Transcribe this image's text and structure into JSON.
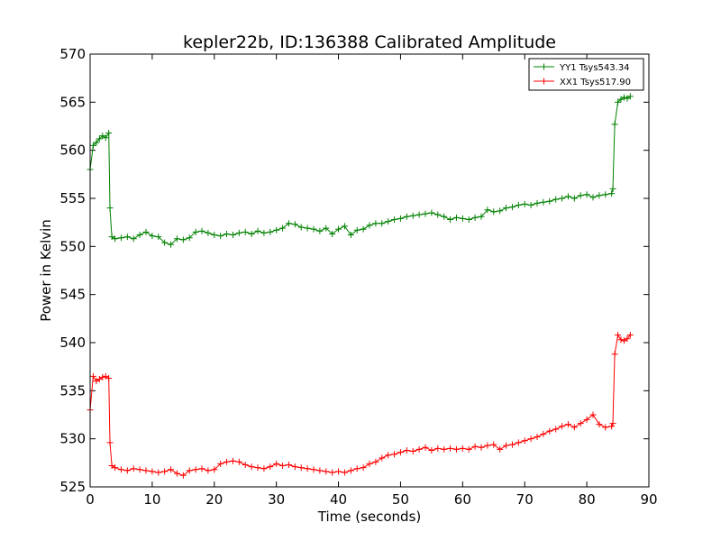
{
  "chart_data": {
    "type": "line",
    "title": "kepler22b, ID:136388 Calibrated Amplitude",
    "xlabel": "Time (seconds)",
    "ylabel": "Power in Kelvin",
    "xlim": [
      0,
      90
    ],
    "ylim": [
      525,
      570
    ],
    "x_ticks": [
      "0",
      "10",
      "20",
      "30",
      "40",
      "50",
      "60",
      "70",
      "80",
      "90"
    ],
    "y_ticks": [
      "525",
      "530",
      "535",
      "540",
      "545",
      "550",
      "555",
      "560",
      "565",
      "570"
    ],
    "grid": false,
    "legend_position": "top-right",
    "marker": "+",
    "series": [
      {
        "name": "YY1 Tsys543.34",
        "color": "#008000",
        "x": [
          0,
          0.5,
          1,
          1.5,
          2,
          2.5,
          3,
          3.2,
          3.5,
          4,
          5,
          6,
          7,
          8,
          9,
          10,
          11,
          12,
          13,
          14,
          15,
          16,
          17,
          18,
          19,
          20,
          21,
          22,
          23,
          24,
          25,
          26,
          27,
          28,
          29,
          30,
          31,
          32,
          33,
          34,
          35,
          36,
          37,
          38,
          39,
          40,
          41,
          42,
          43,
          44,
          45,
          46,
          47,
          48,
          49,
          50,
          51,
          52,
          53,
          54,
          55,
          56,
          57,
          58,
          59,
          60,
          61,
          62,
          63,
          64,
          65,
          66,
          67,
          68,
          69,
          70,
          71,
          72,
          73,
          74,
          75,
          76,
          77,
          78,
          79,
          80,
          81,
          82,
          83,
          84,
          84.2,
          84.5,
          85,
          85.5,
          86,
          86.5,
          87
        ],
        "y": [
          558,
          560.5,
          560.8,
          561.2,
          561.5,
          561.3,
          561.8,
          554,
          551,
          550.8,
          550.9,
          551,
          550.8,
          551.2,
          551.5,
          551.1,
          551,
          550.4,
          550.2,
          550.8,
          550.7,
          550.9,
          551.5,
          551.6,
          551.4,
          551.2,
          551.1,
          551.3,
          551.2,
          551.4,
          551.5,
          551.3,
          551.6,
          551.4,
          551.5,
          551.7,
          551.9,
          552.4,
          552.3,
          552,
          551.9,
          551.8,
          551.6,
          551.9,
          551.3,
          551.8,
          552.1,
          551.2,
          551.7,
          551.8,
          552.2,
          552.4,
          552.4,
          552.6,
          552.8,
          552.9,
          553.1,
          553.2,
          553.3,
          553.4,
          553.5,
          553.3,
          553.1,
          552.8,
          553,
          552.9,
          552.8,
          553,
          553.1,
          553.8,
          553.6,
          553.7,
          554,
          554.1,
          554.3,
          554.4,
          554.3,
          554.5,
          554.6,
          554.7,
          554.9,
          555,
          555.2,
          555,
          555.3,
          555.4,
          555.1,
          555.3,
          555.4,
          555.5,
          556,
          562.7,
          565,
          565.3,
          565.5,
          565.4,
          565.6
        ]
      },
      {
        "name": "XX1 Tsys517.90",
        "color": "#ff0000",
        "x": [
          0,
          0.5,
          1,
          1.5,
          2,
          2.5,
          3,
          3.2,
          3.5,
          4,
          5,
          6,
          7,
          8,
          9,
          10,
          11,
          12,
          13,
          14,
          15,
          16,
          17,
          18,
          19,
          20,
          21,
          22,
          23,
          24,
          25,
          26,
          27,
          28,
          29,
          30,
          31,
          32,
          33,
          34,
          35,
          36,
          37,
          38,
          39,
          40,
          41,
          42,
          43,
          44,
          45,
          46,
          47,
          48,
          49,
          50,
          51,
          52,
          53,
          54,
          55,
          56,
          57,
          58,
          59,
          60,
          61,
          62,
          63,
          64,
          65,
          66,
          67,
          68,
          69,
          70,
          71,
          72,
          73,
          74,
          75,
          76,
          77,
          78,
          79,
          80,
          81,
          82,
          83,
          84,
          84.2,
          84.5,
          85,
          85.5,
          86,
          86.5,
          87
        ],
        "y": [
          533,
          536.5,
          536,
          536.2,
          536.4,
          536.5,
          536.3,
          529.6,
          527.2,
          527,
          526.8,
          526.7,
          526.9,
          526.8,
          526.7,
          526.6,
          526.5,
          526.6,
          526.8,
          526.4,
          526.2,
          526.7,
          526.8,
          526.9,
          526.7,
          526.8,
          527.4,
          527.6,
          527.7,
          527.6,
          527.3,
          527.1,
          527,
          526.9,
          527.1,
          527.4,
          527.2,
          527.3,
          527.1,
          527,
          526.9,
          526.8,
          526.7,
          526.6,
          526.5,
          526.6,
          526.5,
          526.7,
          526.9,
          527,
          527.4,
          527.6,
          528,
          528.3,
          528.4,
          528.6,
          528.8,
          528.7,
          528.9,
          529.1,
          528.8,
          529,
          528.9,
          529,
          528.9,
          529,
          528.9,
          529.2,
          529.1,
          529.3,
          529.4,
          528.9,
          529.3,
          529.4,
          529.6,
          529.8,
          530,
          530.2,
          530.5,
          530.8,
          531,
          531.3,
          531.5,
          531.2,
          531.6,
          532,
          532.5,
          531.5,
          531.2,
          531.3,
          531.6,
          538.8,
          540.8,
          540.3,
          540.2,
          540.4,
          540.8
        ]
      }
    ]
  }
}
